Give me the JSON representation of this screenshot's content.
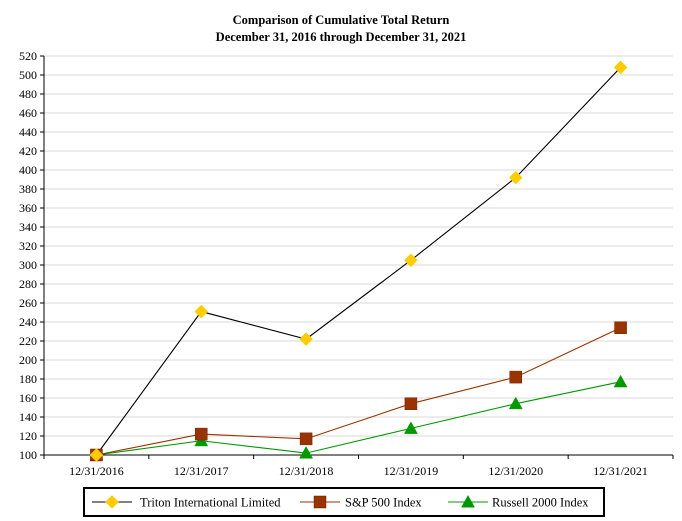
{
  "chart_data": {
    "type": "line",
    "title": "Comparison of Cumulative Total Return",
    "subtitle": "December 31, 2016 through December 31, 2021",
    "xlabel": "",
    "ylabel": "",
    "categories": [
      "12/31/2016",
      "12/31/2017",
      "12/31/2018",
      "12/31/2019",
      "12/31/2020",
      "12/31/2021"
    ],
    "ylim": [
      100,
      520
    ],
    "yticks": [
      100,
      120,
      140,
      160,
      180,
      200,
      220,
      240,
      260,
      280,
      300,
      320,
      340,
      360,
      380,
      400,
      420,
      440,
      460,
      480,
      500,
      520
    ],
    "grid": true,
    "legend_position": "bottom",
    "series": [
      {
        "name": "Triton International Limited",
        "values": [
          100,
          251,
          222,
          305,
          392,
          508
        ],
        "line_color": "#000000",
        "marker": "diamond",
        "marker_color": "#FFCC00"
      },
      {
        "name": "S&P 500 Index",
        "values": [
          100,
          122,
          117,
          154,
          182,
          234
        ],
        "line_color": "#993300",
        "marker": "square",
        "marker_color": "#993300"
      },
      {
        "name": "Russell 2000 Index",
        "values": [
          100,
          115,
          102,
          128,
          154,
          177
        ],
        "line_color": "#009900",
        "marker": "triangle",
        "marker_color": "#009900"
      }
    ]
  }
}
